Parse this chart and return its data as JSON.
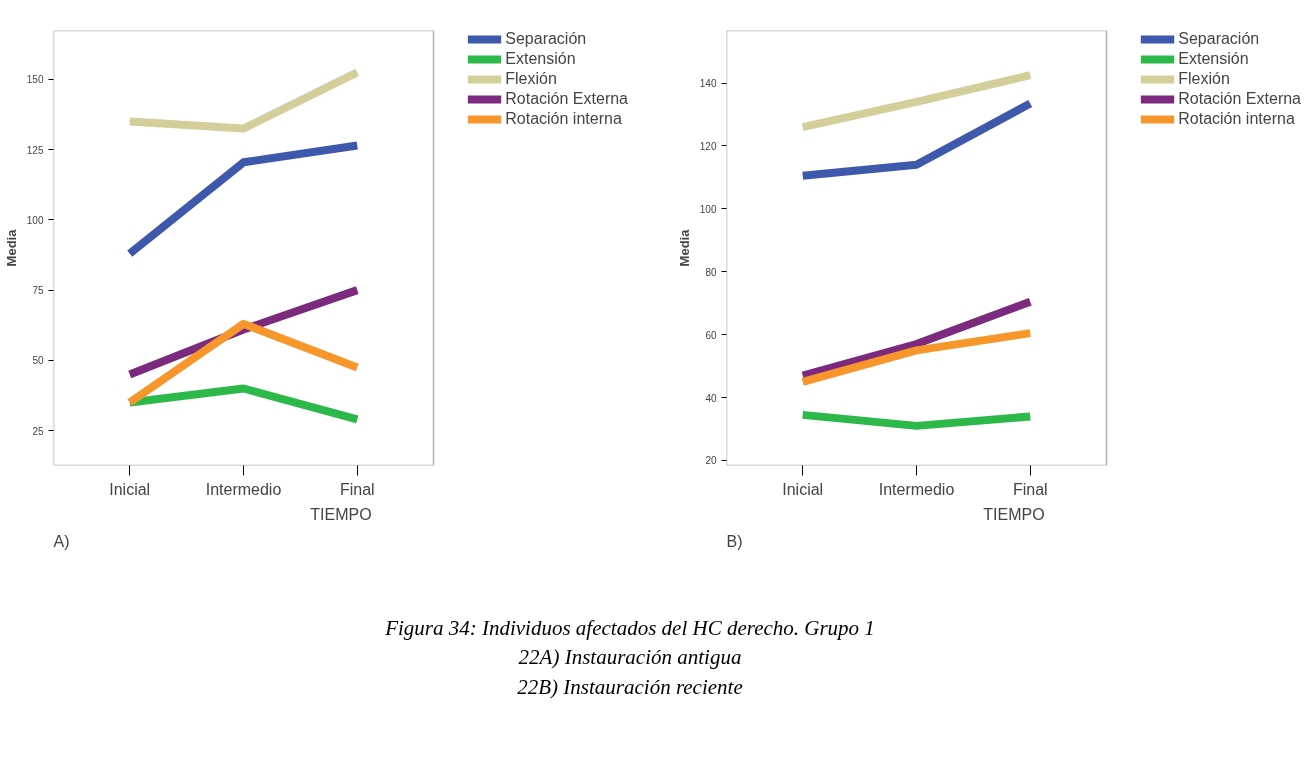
{
  "chart_data": [
    {
      "type": "line",
      "xlabel": "TIEMPO",
      "ylabel": "Media",
      "categories": [
        "Inicial",
        "Intermedio",
        "Final"
      ],
      "ylim": [
        12.6,
        167.4
      ],
      "yticks": [
        25,
        50,
        75,
        100,
        125,
        150
      ],
      "grid": false,
      "legend": "top right",
      "annotations": [
        "A)"
      ],
      "series": [
        {
          "name": "Separación",
          "color": "#3e58ac",
          "values": [
            88,
            120.5,
            126.5
          ]
        },
        {
          "name": "Extensión",
          "color": "#2db84a",
          "values": [
            35,
            40,
            29
          ]
        },
        {
          "name": "Flexión",
          "color": "#d4cf9a",
          "values": [
            135,
            132.5,
            152.5
          ]
        },
        {
          "name": "Rotación Externa",
          "color": "#7b2a7e",
          "values": [
            45,
            61,
            75
          ]
        },
        {
          "name": "Rotación interna",
          "color": "#f7962a",
          "values": [
            35,
            63,
            47.5
          ]
        }
      ]
    },
    {
      "type": "line",
      "xlabel": "TIEMPO",
      "ylabel": "Media",
      "categories": [
        "Inicial",
        "Intermedio",
        "Final"
      ],
      "ylim": [
        18.4,
        156.7
      ],
      "yticks": [
        20,
        40,
        60,
        80,
        100,
        120,
        140
      ],
      "grid": false,
      "legend": "top right",
      "annotations": [
        "B)",
        "Figura 34: Individuos afectados del HC derecho. Grupo 1",
        "22A) Instauración antigua",
        "22B) Instauración reciente"
      ],
      "series": [
        {
          "name": "Separación",
          "color": "#3e58ac",
          "values": [
            110.5,
            114,
            133.5
          ]
        },
        {
          "name": "Extensión",
          "color": "#2db84a",
          "values": [
            34.5,
            31,
            34
          ]
        },
        {
          "name": "Flexión",
          "color": "#d4cf9a",
          "values": [
            126,
            134,
            142.5
          ]
        },
        {
          "name": "Rotación Externa",
          "color": "#7b2a7e",
          "values": [
            47,
            57,
            70.5
          ]
        },
        {
          "name": "Rotación interna",
          "color": "#f7962a",
          "values": [
            45,
            55,
            60.5
          ]
        }
      ]
    }
  ]
}
